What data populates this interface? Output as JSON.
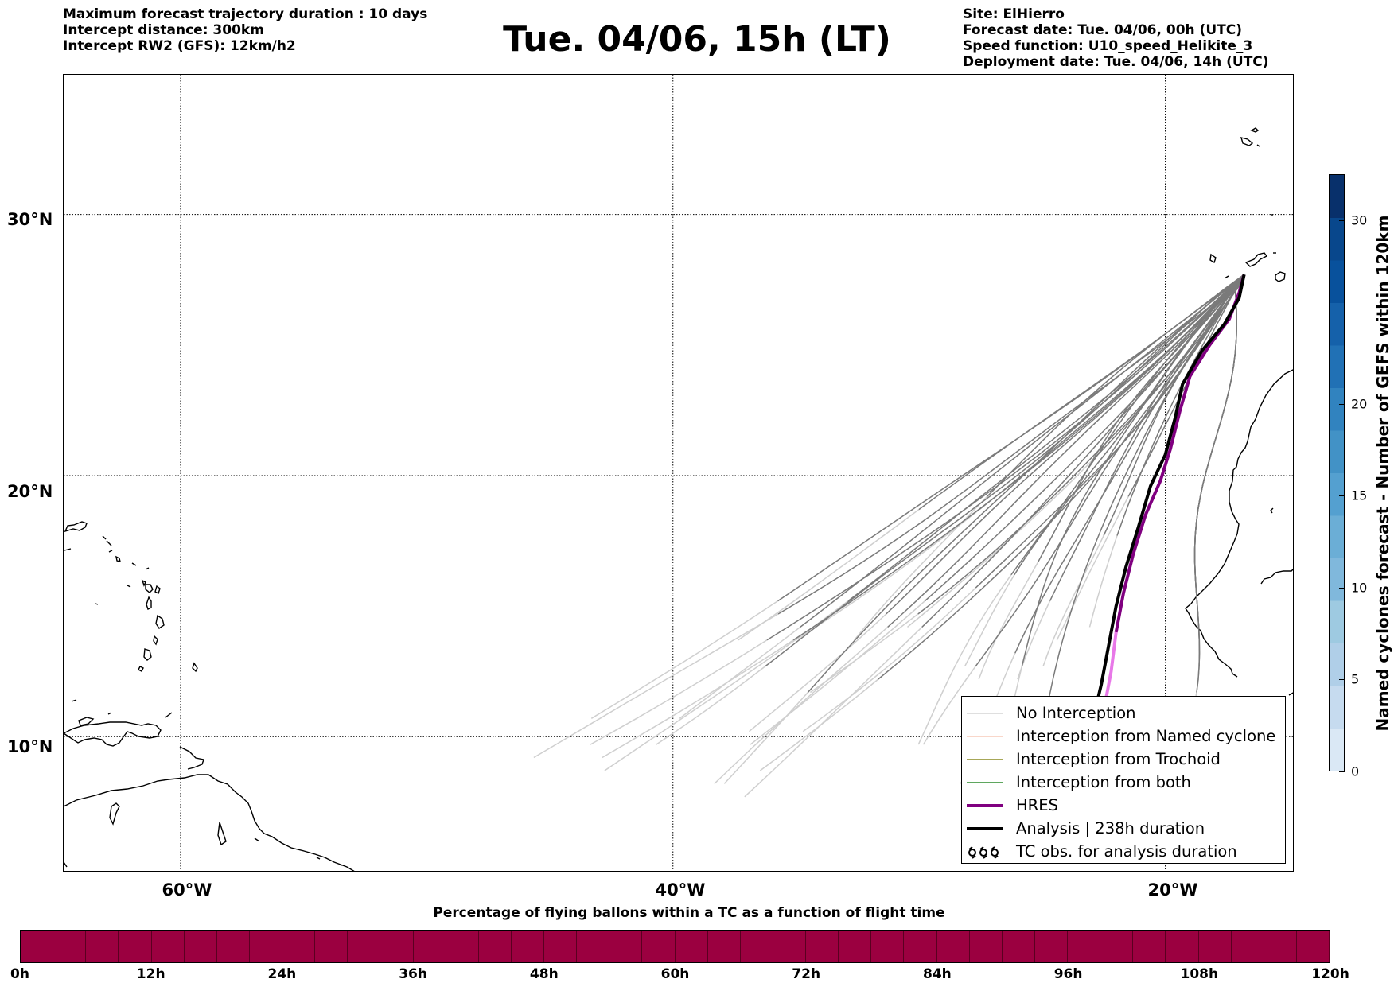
{
  "header_left": [
    "Maximum forecast trajectory duration : 10 days",
    "Intercept distance: 300km",
    "Intercept RW2 (GFS):  12km/h2"
  ],
  "title": "Tue. 04/06, 15h (LT)",
  "header_right": [
    "Site: ElHierro",
    "Forecast date: Tue. 04/06, 00h (UTC)",
    "Speed function: U10_speed_Helikite_3",
    "Deployment date: Tue. 04/06, 14h (UTC)"
  ],
  "map": {
    "lon_range": [
      -64.75,
      -14.75
    ],
    "lat_range": [
      4.8,
      35.35
    ],
    "lat_gridlines": [
      30,
      20,
      10
    ],
    "lat_labels": [
      "30°N",
      "20°N",
      "10°N"
    ],
    "lon_gridlines": [
      -60,
      -40,
      -20
    ],
    "lon_labels": [
      "60°W",
      "40°W",
      "20°W"
    ],
    "grid_style": "dotted"
  },
  "trajectories": {
    "launch_point": [
      -16.8,
      27.7
    ],
    "hres": [
      [
        -16.8,
        27.7
      ],
      [
        -17.0,
        27.0
      ],
      [
        -17.4,
        26.0
      ],
      [
        -18.2,
        25.0
      ],
      [
        -19.0,
        23.8
      ],
      [
        -19.4,
        22.5
      ],
      [
        -19.8,
        21.0
      ],
      [
        -20.2,
        19.8
      ],
      [
        -20.8,
        18.5
      ],
      [
        -21.3,
        17.0
      ],
      [
        -21.7,
        15.5
      ],
      [
        -22.0,
        14.0
      ],
      [
        -22.2,
        12.5
      ],
      [
        -22.5,
        11.0
      ]
    ],
    "analysis": [
      [
        -16.8,
        27.7
      ],
      [
        -17.0,
        26.8
      ],
      [
        -17.6,
        25.8
      ],
      [
        -18.5,
        24.8
      ],
      [
        -19.3,
        23.5
      ],
      [
        -19.6,
        22.2
      ],
      [
        -20.0,
        20.8
      ],
      [
        -20.6,
        19.6
      ],
      [
        -21.1,
        18.0
      ],
      [
        -21.6,
        16.5
      ],
      [
        -22.0,
        15.0
      ],
      [
        -22.3,
        13.5
      ],
      [
        -22.6,
        12.0
      ],
      [
        -22.9,
        10.8
      ]
    ]
  },
  "legend": {
    "items": [
      {
        "label": "No Interception",
        "color": "#808080",
        "width": 1.5
      },
      {
        "label": "Interception from Named cyclone",
        "color": "#e8602a",
        "width": 1.5
      },
      {
        "label": "Interception from Trochoid",
        "color": "#8a8a20",
        "width": 1.5
      },
      {
        "label": "Interception from both",
        "color": "#2a8a2a",
        "width": 1.5
      },
      {
        "label": "HRES",
        "color": "#800080",
        "width": 4
      },
      {
        "label": "Analysis | 238h duration",
        "color": "#000000",
        "width": 4
      }
    ],
    "tc_obs_label": "TC obs. for analysis duration",
    "tc_obs_icon": "cyclone-symbol-icon"
  },
  "colorbar": {
    "label": "Named cyclones forecast - Number of GEFS within 120km",
    "min": 0,
    "max": 32.5,
    "ticks": [
      0,
      5,
      10,
      15,
      20,
      30
    ],
    "colors": [
      "#dae8f5",
      "#c6dbef",
      "#b0cfe8",
      "#9ecae1",
      "#80b8dc",
      "#6baed6",
      "#54a0d0",
      "#4292c6",
      "#3183bf",
      "#2171b5",
      "#1561aa",
      "#08519c",
      "#08478c",
      "#08306b"
    ]
  },
  "bottom_bar": {
    "title": "Percentage of flying ballons within a TC as a function of flight time",
    "labels": [
      "0h",
      "12h",
      "24h",
      "36h",
      "48h",
      "60h",
      "72h",
      "84h",
      "96h",
      "108h",
      "120h"
    ],
    "color": "#9b0040",
    "segments": 40
  }
}
